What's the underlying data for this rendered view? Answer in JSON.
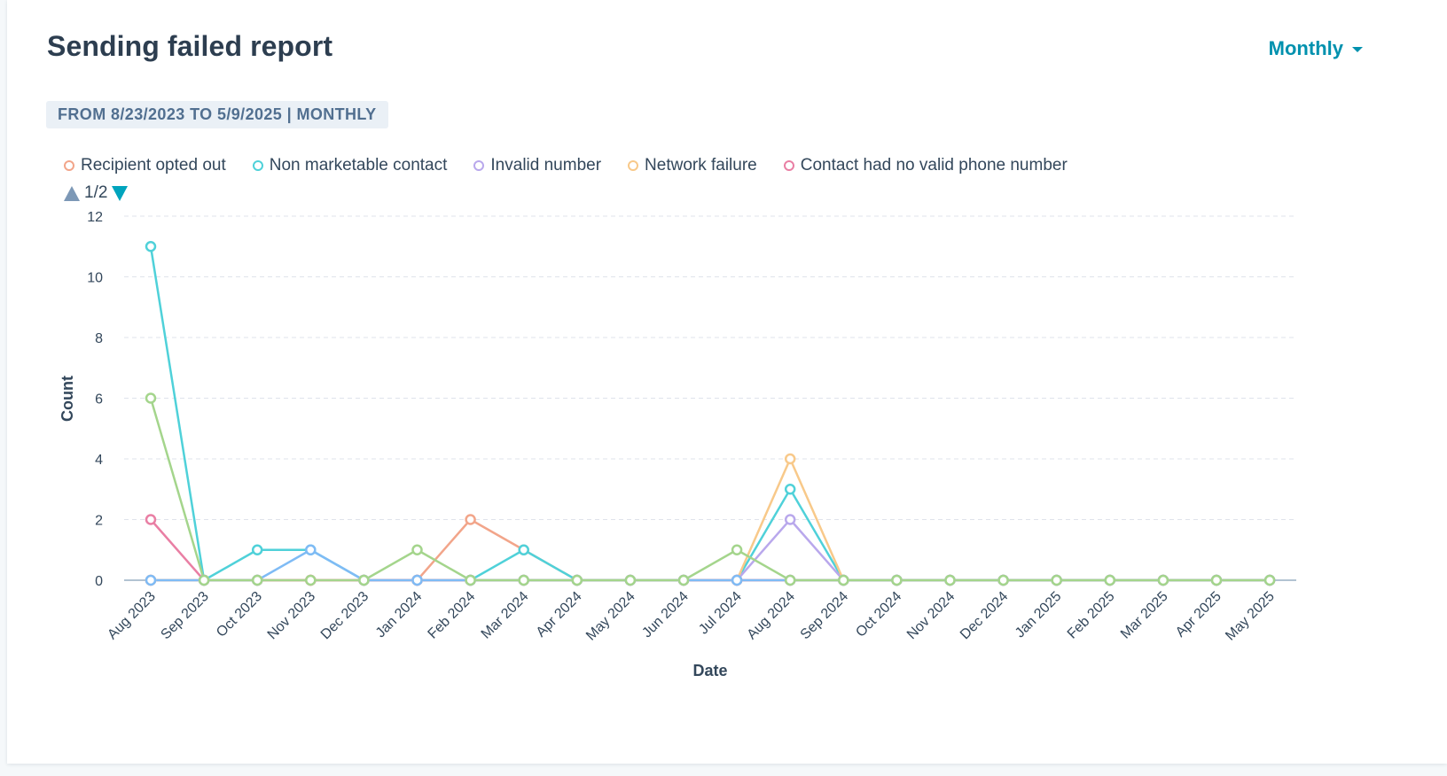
{
  "header": {
    "title": "Sending failed report",
    "frequency_label": "Monthly"
  },
  "range_label": "FROM 8/23/2023 TO 5/9/2025 | MONTHLY",
  "legend_pager": "1/2",
  "chart_data": {
    "type": "line",
    "xlabel": "Date",
    "ylabel": "Count",
    "ylim": [
      0,
      12
    ],
    "yticks": [
      0,
      2,
      4,
      6,
      8,
      10,
      12
    ],
    "grid": true,
    "legend_position": "top-left",
    "categories": [
      "Aug 2023",
      "Sep 2023",
      "Oct 2023",
      "Nov 2023",
      "Dec 2023",
      "Jan 2024",
      "Feb 2024",
      "Mar 2024",
      "Apr 2024",
      "May 2024",
      "Jun 2024",
      "Jul 2024",
      "Aug 2024",
      "Sep 2024",
      "Oct 2024",
      "Nov 2024",
      "Dec 2024",
      "Jan 2025",
      "Feb 2025",
      "Mar 2025",
      "Apr 2025",
      "May 2025"
    ],
    "series": [
      {
        "name": "Recipient opted out",
        "color": "#f2a58a",
        "values": [
          0,
          0,
          0,
          0,
          0,
          0,
          2,
          1,
          0,
          0,
          0,
          0,
          0,
          0,
          0,
          0,
          0,
          0,
          0,
          0,
          0,
          0
        ]
      },
      {
        "name": "Non marketable contact",
        "color": "#4fd1d9",
        "values": [
          11,
          0,
          1,
          1,
          0,
          0,
          0,
          1,
          0,
          0,
          0,
          0,
          3,
          0,
          0,
          0,
          0,
          0,
          0,
          0,
          0,
          0
        ]
      },
      {
        "name": "Invalid number",
        "color": "#b9a8ec",
        "values": [
          0,
          0,
          0,
          0,
          0,
          0,
          0,
          0,
          0,
          0,
          0,
          0,
          2,
          0,
          0,
          0,
          0,
          0,
          0,
          0,
          0,
          0
        ]
      },
      {
        "name": "Network failure",
        "color": "#f8c98a",
        "values": [
          0,
          0,
          0,
          0,
          0,
          0,
          0,
          0,
          0,
          0,
          0,
          0,
          4,
          0,
          0,
          0,
          0,
          0,
          0,
          0,
          0,
          0
        ]
      },
      {
        "name": "Contact had no valid phone number",
        "color": "#e97fa4",
        "values": [
          2,
          0,
          0,
          0,
          0,
          0,
          0,
          0,
          0,
          0,
          0,
          0,
          0,
          0,
          0,
          0,
          0,
          0,
          0,
          0,
          0,
          0
        ]
      },
      {
        "color": "#7fbbf5",
        "values": [
          0,
          0,
          0,
          1,
          0,
          0,
          0,
          0,
          0,
          0,
          0,
          0,
          0,
          0,
          0,
          0,
          0,
          0,
          0,
          0,
          0,
          0
        ]
      },
      {
        "color": "#a4d58c",
        "values": [
          6,
          0,
          0,
          0,
          0,
          1,
          0,
          0,
          0,
          0,
          0,
          1,
          0,
          0,
          0,
          0,
          0,
          0,
          0,
          0,
          0,
          0
        ]
      }
    ]
  }
}
